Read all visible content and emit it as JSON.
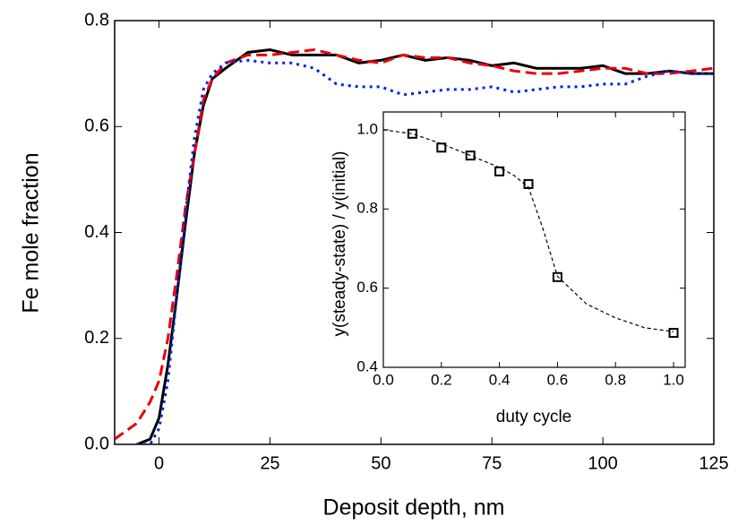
{
  "chart_data": [
    {
      "type": "line",
      "xlabel": "Deposit depth, nm",
      "ylabel": "Fe mole fraction",
      "x": [
        -10,
        -5,
        -2,
        0,
        2,
        4,
        6,
        8,
        10,
        12,
        15,
        20,
        25,
        30,
        35,
        40,
        45,
        50,
        55,
        60,
        65,
        70,
        75,
        80,
        85,
        90,
        95,
        100,
        105,
        110,
        115,
        120,
        125
      ],
      "series": [
        {
          "color": "#000000",
          "dash": "solid",
          "values": [
            null,
            0,
            0.01,
            0.05,
            0.15,
            0.28,
            0.42,
            0.55,
            0.64,
            0.69,
            0.71,
            0.74,
            0.745,
            0.735,
            0.735,
            0.735,
            0.72,
            0.725,
            0.735,
            0.725,
            0.73,
            0.725,
            0.715,
            0.72,
            0.71,
            0.71,
            0.71,
            0.715,
            0.7,
            0.7,
            0.705,
            0.7,
            0.7
          ]
        },
        {
          "color": "#e8000b",
          "dash": "dashed",
          "values": [
            0.01,
            0.04,
            0.08,
            0.12,
            0.2,
            0.32,
            0.45,
            0.55,
            0.65,
            0.69,
            0.72,
            0.735,
            0.735,
            0.74,
            0.745,
            0.735,
            0.725,
            0.72,
            0.735,
            0.73,
            0.73,
            0.72,
            0.715,
            0.705,
            0.7,
            0.7,
            0.705,
            0.71,
            0.71,
            0.7,
            0.7,
            0.705,
            0.71
          ]
        },
        {
          "color": "#0022e0",
          "dash": "dotted",
          "values": [
            null,
            0,
            0,
            0.03,
            0.12,
            0.28,
            0.44,
            0.58,
            0.67,
            0.7,
            0.72,
            0.725,
            0.72,
            0.72,
            0.71,
            0.68,
            0.675,
            0.675,
            0.66,
            0.665,
            0.67,
            0.67,
            0.675,
            0.665,
            0.67,
            0.675,
            0.675,
            0.68,
            0.68,
            0.695,
            0.705,
            0.7,
            0.7
          ]
        }
      ],
      "xlim": [
        -10,
        125
      ],
      "xticks": [
        0,
        25,
        50,
        75,
        100,
        125
      ],
      "ylim": [
        0,
        0.8
      ],
      "yticks": [
        {
          "value": 0,
          "label": "0.0"
        },
        0.2,
        0.4,
        0.6,
        0.8
      ]
    },
    {
      "type": "scatter",
      "xlabel": "duty cycle",
      "ylabel": "y(steady-state) / y(initial)",
      "series": [
        {
          "color": "#000000",
          "mode": "dashed-line",
          "x": [
            0,
            0.1,
            0.2,
            0.3,
            0.4,
            0.45,
            0.5,
            0.55,
            0.6,
            0.7,
            0.8,
            0.9,
            1.0
          ],
          "values": [
            1.0,
            0.99,
            0.965,
            0.935,
            0.905,
            0.885,
            0.855,
            0.75,
            0.63,
            0.56,
            0.525,
            0.5,
            0.49
          ]
        },
        {
          "color": "#000000",
          "mode": "square-markers",
          "x": [
            0.1,
            0.2,
            0.3,
            0.4,
            0.5,
            0.6,
            1.0
          ],
          "values": [
            0.99,
            0.955,
            0.935,
            0.895,
            0.863,
            0.628,
            0.487
          ]
        }
      ],
      "xlim": [
        0,
        1.04
      ],
      "xticks": [
        {
          "value": 0,
          "label": "0.0"
        },
        0.2,
        0.4,
        0.6,
        0.8,
        {
          "value": 1,
          "label": "1.0"
        }
      ],
      "ylim": [
        0.4,
        1.045
      ],
      "yticks": [
        0.4,
        0.6,
        0.8,
        {
          "value": 1,
          "label": "1.0"
        }
      ]
    }
  ]
}
